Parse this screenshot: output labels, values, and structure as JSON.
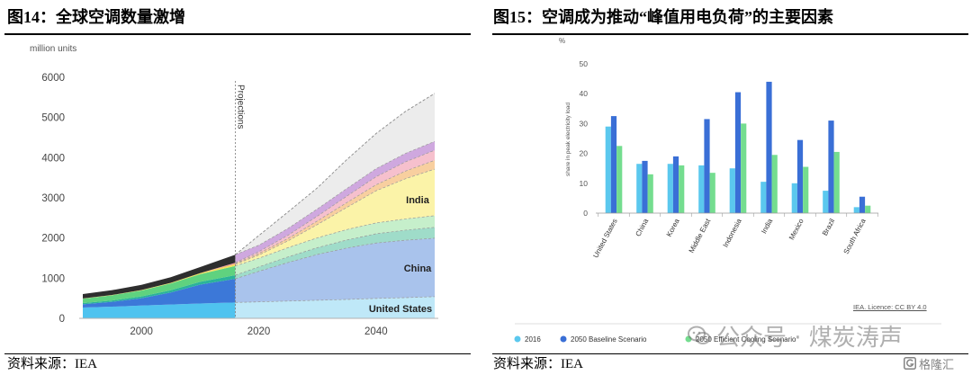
{
  "left": {
    "title": "图14：全球空调数量激增",
    "source": "资料来源：IEA"
  },
  "right": {
    "title": "图15：空调成为推动“峰值用电负荷”的主要因素",
    "source": "资料来源：IEA",
    "licence": "IEA. Licence: CC BY 4.0"
  },
  "watermark": {
    "icon": "wechat-icon",
    "text": "公众号 · 煤炭涛声"
  },
  "logo": {
    "icon": "gelonghui-logo-icon",
    "text": "格隆汇"
  },
  "chart_data": [
    {
      "type": "area",
      "title": "",
      "xlabel": "",
      "ylabel": "million units",
      "stacked": true,
      "grid": false,
      "x": [
        1990,
        1995,
        2000,
        2005,
        2010,
        2016,
        2020,
        2025,
        2030,
        2035,
        2040,
        2045,
        2050
      ],
      "xlim": [
        1990,
        2050
      ],
      "xticks": [
        2000,
        2020,
        2040
      ],
      "ylim": [
        0,
        6000
      ],
      "yticks": [
        0,
        1000,
        2000,
        3000,
        4000,
        5000,
        6000
      ],
      "projection_start": 2016,
      "projection_label": "Projections",
      "series": [
        {
          "name": "United States",
          "color": "#4fc3ef",
          "projection_color": "#bfe8f8",
          "values": [
            270,
            290,
            320,
            345,
            370,
            395,
            410,
            430,
            450,
            470,
            495,
            515,
            540
          ]
        },
        {
          "name": "China",
          "color": "#3c78d8",
          "projection_color": "#a9c3ec",
          "values": [
            80,
            120,
            180,
            300,
            470,
            590,
            760,
            960,
            1140,
            1280,
            1380,
            1430,
            1455
          ]
        },
        {
          "color": "#2bb39a",
          "projection_color": "#9fdcc9",
          "values": [
            30,
            35,
            45,
            55,
            70,
            90,
            110,
            140,
            170,
            200,
            230,
            250,
            270
          ]
        },
        {
          "color": "#5fd27f",
          "projection_color": "#c6efcb",
          "values": [
            110,
            130,
            150,
            170,
            190,
            230,
            215,
            230,
            245,
            260,
            270,
            280,
            290
          ]
        },
        {
          "name": "India",
          "color": "#f2e25a",
          "projection_color": "#fbf3a8",
          "values": [
            5,
            7,
            10,
            15,
            25,
            40,
            80,
            170,
            330,
            550,
            800,
            1000,
            1160
          ]
        },
        {
          "color": "#f0a95e",
          "projection_color": "#f8cf9f",
          "values": [
            0,
            0,
            0,
            0,
            0,
            20,
            40,
            60,
            90,
            120,
            150,
            190,
            220
          ]
        },
        {
          "color": "#ef8fa6",
          "projection_color": "#f6c0cd",
          "values": [
            0,
            0,
            0,
            0,
            0,
            20,
            45,
            80,
            120,
            160,
            200,
            230,
            250
          ]
        },
        {
          "color": "#2e2e2e",
          "projection_color": "#cfa8df",
          "values": [
            110,
            120,
            130,
            140,
            150,
            200,
            160,
            170,
            180,
            190,
            200,
            210,
            220
          ]
        }
      ],
      "upper_range": {
        "color": "#ececec",
        "values": [
          null,
          null,
          null,
          null,
          null,
          1585,
          2060,
          2650,
          3250,
          3950,
          4600,
          5150,
          5600
        ]
      }
    },
    {
      "type": "bar",
      "title": "",
      "xlabel": "",
      "ylabel": "share in peak electricity load",
      "yunit": "%",
      "grid": false,
      "legend": "bottom-left",
      "categories": [
        "United States",
        "China",
        "Korea",
        "Middle East",
        "Indonesia",
        "India",
        "Mexico",
        "Brazil",
        "South Africa"
      ],
      "ylim": [
        0,
        50
      ],
      "yticks": [
        0,
        10,
        20,
        30,
        40,
        50
      ],
      "series": [
        {
          "name": "2016",
          "color": "#5bc8ee",
          "values": [
            29,
            16.5,
            16.5,
            16,
            15,
            10.5,
            10,
            7.5,
            2
          ]
        },
        {
          "name": "2050 Baseline Scenario",
          "color": "#3a6fd6",
          "values": [
            32.5,
            17.5,
            19,
            31.5,
            40.5,
            44,
            24.5,
            31,
            5.5
          ]
        },
        {
          "name": "2050 Efficient Cooling Scenario",
          "color": "#74dd8f",
          "values": [
            22.5,
            13,
            16,
            13.5,
            30,
            19.5,
            15.5,
            20.5,
            2.5
          ]
        }
      ]
    }
  ]
}
